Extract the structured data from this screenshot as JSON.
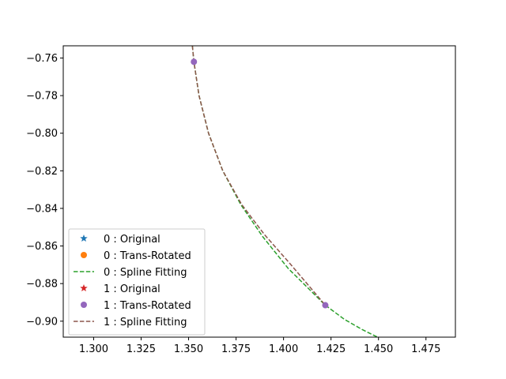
{
  "chart_data": {
    "type": "line",
    "title": "",
    "xlabel": "",
    "ylabel": "",
    "xlim": [
      1.284,
      1.4905
    ],
    "ylim": [
      -0.9085,
      -0.7535
    ],
    "x_ticks": [
      1.3,
      1.325,
      1.35,
      1.375,
      1.4,
      1.425,
      1.45,
      1.475
    ],
    "x_tick_labels": [
      "1.300",
      "1.325",
      "1.350",
      "1.375",
      "1.400",
      "1.425",
      "1.450",
      "1.475"
    ],
    "y_ticks": [
      -0.76,
      -0.78,
      -0.8,
      -0.82,
      -0.84,
      -0.86,
      -0.88,
      -0.9
    ],
    "y_tick_labels": [
      "−0.76",
      "−0.78",
      "−0.80",
      "−0.82",
      "−0.84",
      "−0.86",
      "−0.88",
      "−0.90"
    ],
    "grid": false,
    "legend_position": "lower-left",
    "series": [
      {
        "name": "0 : Original",
        "kind": "marker",
        "marker": "star",
        "color": "#1f77b4",
        "points": []
      },
      {
        "name": "0 : Trans-Rotated",
        "kind": "marker",
        "marker": "circle",
        "color": "#ff7f0e",
        "points": []
      },
      {
        "name": "0 : Spline Fitting",
        "kind": "line",
        "style": "dashed",
        "color": "#2ca02c",
        "points": [
          [
            1.352,
            -0.7535
          ],
          [
            1.3528,
            -0.762
          ],
          [
            1.3555,
            -0.78
          ],
          [
            1.3605,
            -0.8
          ],
          [
            1.368,
            -0.82
          ],
          [
            1.3775,
            -0.838
          ],
          [
            1.389,
            -0.855
          ],
          [
            1.4025,
            -0.872
          ],
          [
            1.422,
            -0.8915
          ],
          [
            1.432,
            -0.899
          ],
          [
            1.4415,
            -0.9045
          ],
          [
            1.4495,
            -0.9085
          ]
        ]
      },
      {
        "name": "1 : Original",
        "kind": "marker",
        "marker": "star",
        "color": "#d62728",
        "points": []
      },
      {
        "name": "1 : Trans-Rotated",
        "kind": "marker",
        "marker": "circle",
        "color": "#9467bd",
        "points": [
          [
            1.3528,
            -0.762
          ],
          [
            1.422,
            -0.8915
          ]
        ]
      },
      {
        "name": "1 : Spline Fitting",
        "kind": "line",
        "style": "dashed",
        "color": "#8c564b",
        "points": [
          [
            1.352,
            -0.7535
          ],
          [
            1.3528,
            -0.762
          ],
          [
            1.3555,
            -0.78
          ],
          [
            1.3605,
            -0.8
          ],
          [
            1.368,
            -0.82
          ],
          [
            1.378,
            -0.838
          ],
          [
            1.39,
            -0.854
          ],
          [
            1.4035,
            -0.8695
          ],
          [
            1.422,
            -0.8915
          ]
        ]
      }
    ]
  }
}
